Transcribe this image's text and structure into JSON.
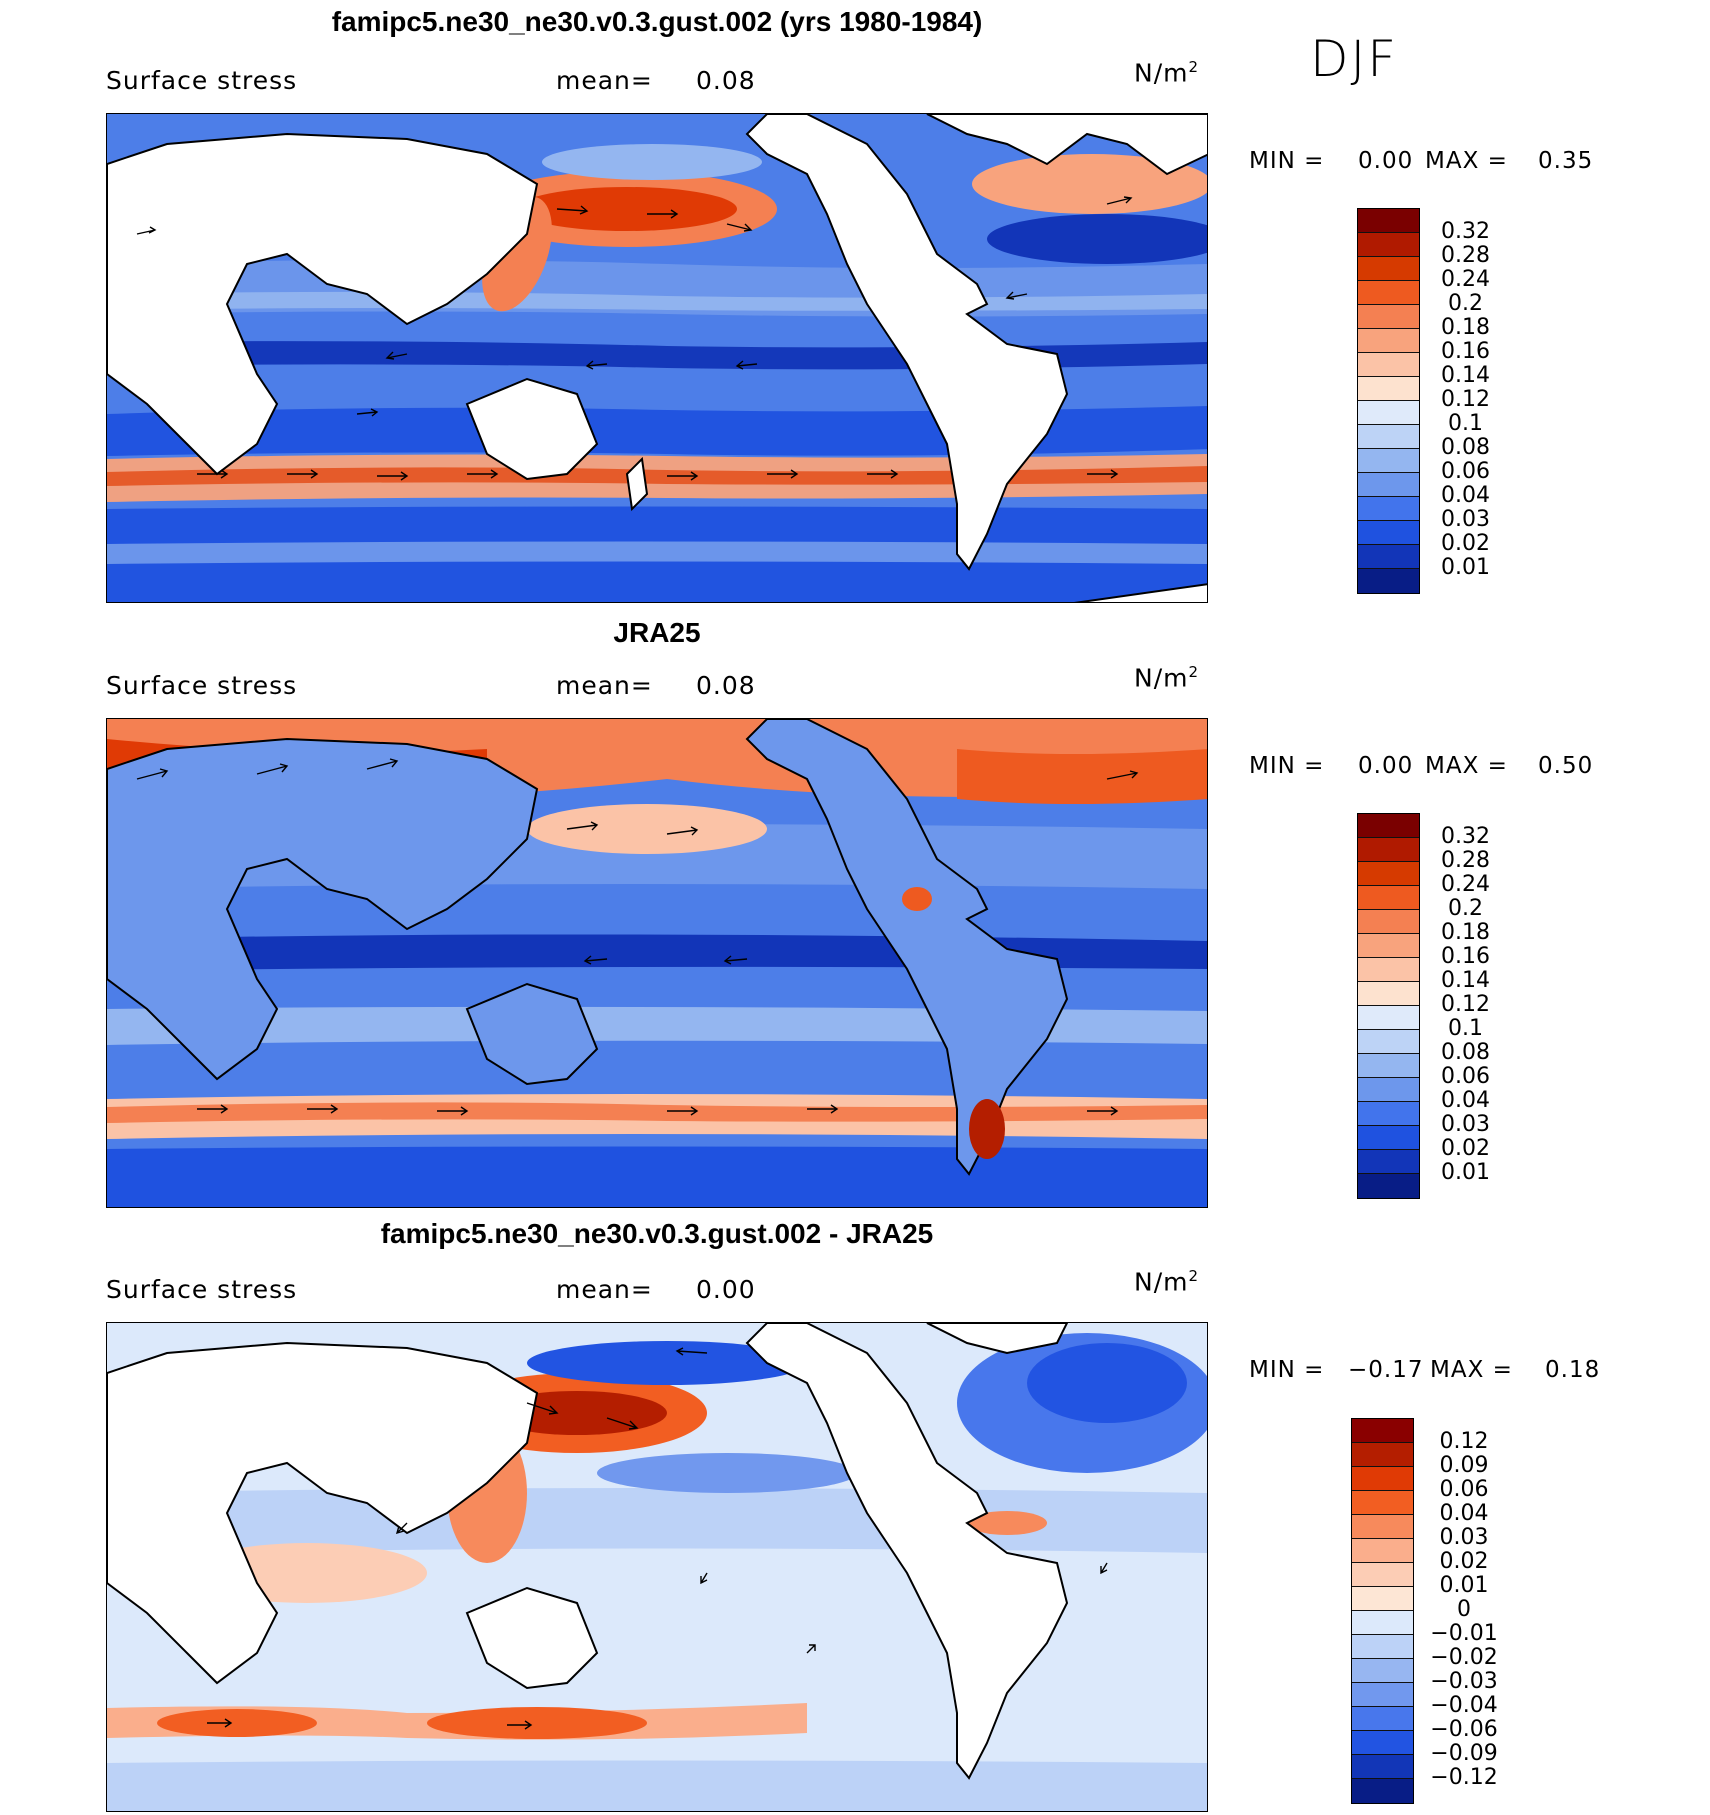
{
  "season": "DJF",
  "colors": {
    "warm_scale": [
      "#7a0000",
      "#b01a00",
      "#d63a00",
      "#ee5a20",
      "#f48052",
      "#f8a37d",
      "#fbc3a7",
      "#fde2cf",
      "#dfeafa",
      "#bdd3f6",
      "#94b6f0",
      "#6d97ec",
      "#4274ec",
      "#1f52e0",
      "#1235b8",
      "#081d86"
    ],
    "diff_scale": [
      "#8a0000",
      "#b41e00",
      "#e03a05",
      "#f25e22",
      "#f78a5c",
      "#faae8c",
      "#fccdb5",
      "#fde6d5",
      "#dce9fb",
      "#bcd2f7",
      "#97b6f1",
      "#7198ee",
      "#4877ec",
      "#2254e2",
      "#1236b7",
      "#081d86"
    ],
    "land": "#ffffff",
    "coast": "#000000"
  },
  "panels": [
    {
      "title": "famipc5.ne30_ne30.v0.3.gust.002 (yrs 1980-1984)",
      "variable": "Surface stress",
      "mean_label": "mean=",
      "mean_value": "0.08",
      "units_base": "N/m",
      "units_exp": "2",
      "min_label": "MIN =",
      "min_value": "0.00",
      "max_label": "MAX =",
      "max_value": "0.35",
      "colorbar_levels": [
        "0.32",
        "0.28",
        "0.24",
        "0.2",
        "0.18",
        "0.16",
        "0.14",
        "0.12",
        "0.1",
        "0.08",
        "0.06",
        "0.04",
        "0.03",
        "0.02",
        "0.01"
      ]
    },
    {
      "title": "JRA25",
      "variable": "Surface stress",
      "mean_label": "mean=",
      "mean_value": "0.08",
      "units_base": "N/m",
      "units_exp": "2",
      "min_label": "MIN =",
      "min_value": "0.00",
      "max_label": "MAX =",
      "max_value": "0.50",
      "colorbar_levels": [
        "0.32",
        "0.28",
        "0.24",
        "0.2",
        "0.18",
        "0.16",
        "0.14",
        "0.12",
        "0.1",
        "0.08",
        "0.06",
        "0.04",
        "0.03",
        "0.02",
        "0.01"
      ]
    },
    {
      "title": "famipc5.ne30_ne30.v0.3.gust.002 - JRA25",
      "variable": "Surface stress",
      "mean_label": "mean=",
      "mean_value": "0.00",
      "units_base": "N/m",
      "units_exp": "2",
      "min_label": "MIN =",
      "min_value": "−0.17",
      "max_label": "MAX =",
      "max_value": "0.18",
      "colorbar_levels": [
        "0.12",
        "0.09",
        "0.06",
        "0.04",
        "0.03",
        "0.02",
        "0.01",
        "0",
        "−0.01",
        "−0.02",
        "−0.03",
        "−0.04",
        "−0.06",
        "−0.09",
        "−0.12"
      ]
    }
  ]
}
